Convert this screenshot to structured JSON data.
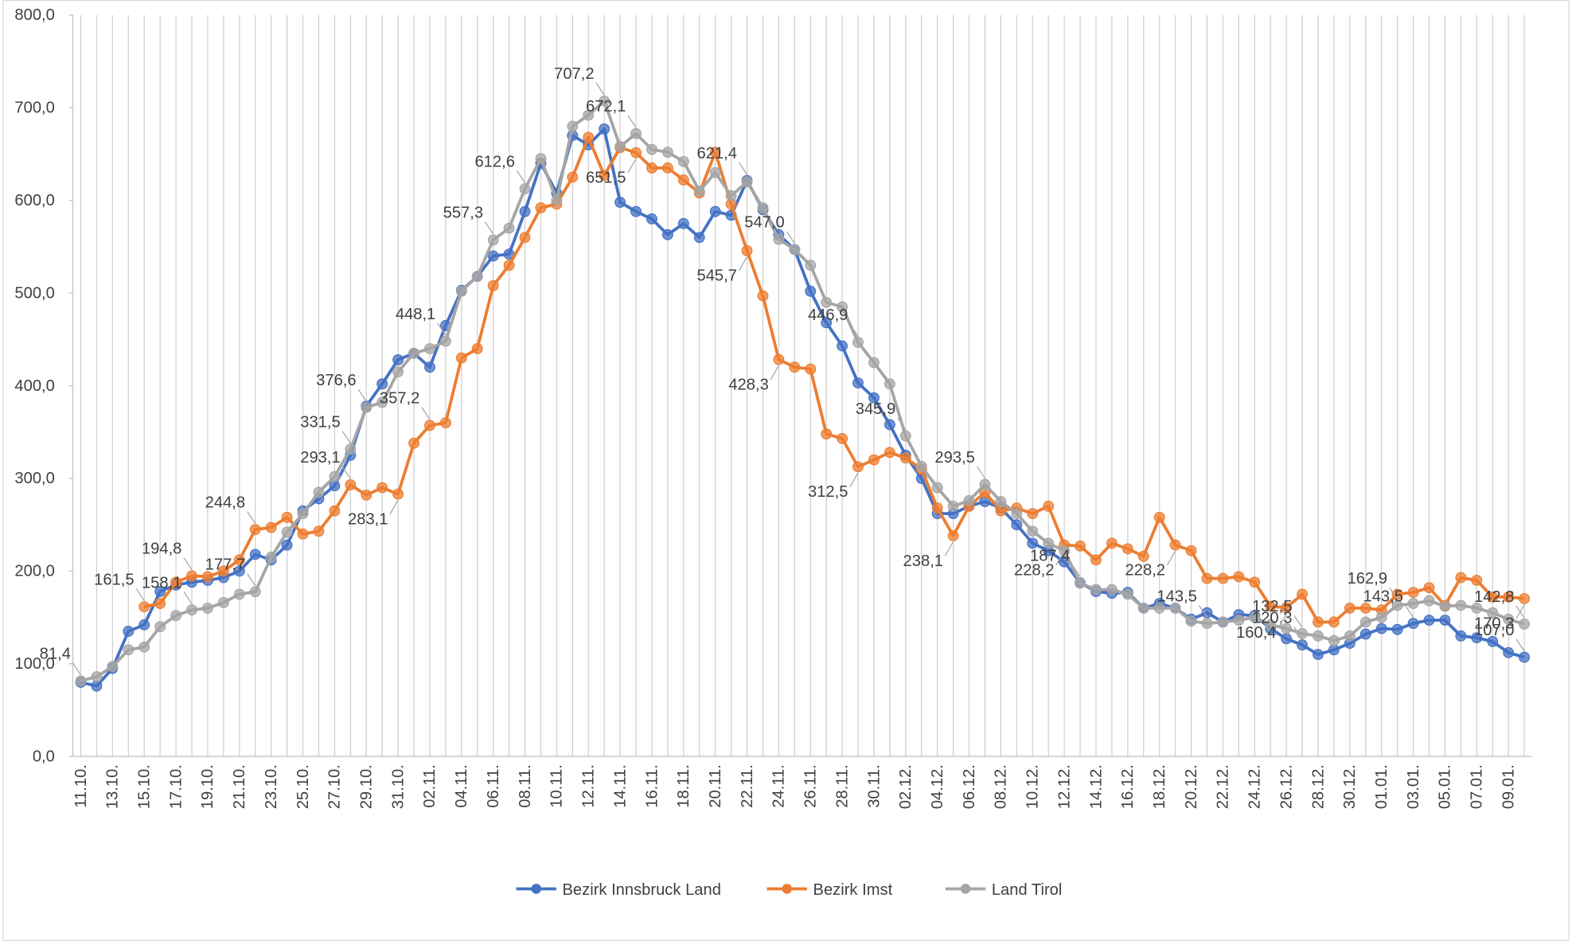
{
  "chart_data": {
    "type": "line",
    "categories": [
      "11.10.",
      null,
      "13.10.",
      null,
      "15.10.",
      null,
      "17.10.",
      null,
      "19.10.",
      null,
      "21.10.",
      null,
      "23.10.",
      null,
      "25.10.",
      null,
      "27.10.",
      null,
      "29.10.",
      null,
      "31.10.",
      null,
      "02.11.",
      null,
      "04.11.",
      null,
      "06.11.",
      null,
      "08.11.",
      null,
      "10.11.",
      null,
      "12.11.",
      null,
      "14.11.",
      null,
      "16.11.",
      null,
      "18.11.",
      null,
      "20.11.",
      null,
      "22.11.",
      null,
      "24.11.",
      null,
      "26.11.",
      null,
      "28.11.",
      null,
      "30.11.",
      null,
      "02.12.",
      null,
      "04.12.",
      null,
      "06.12.",
      null,
      "08.12.",
      null,
      "10.12.",
      null,
      "12.12.",
      null,
      "14.12.",
      null,
      "16.12.",
      null,
      "18.12.",
      null,
      "20.12.",
      null,
      "22.12.",
      null,
      "24.12.",
      null,
      "26.12.",
      null,
      "28.12.",
      null,
      "30.12.",
      null,
      "01.01.",
      null,
      "03.01.",
      null,
      "05.01.",
      null,
      "07.01.",
      null,
      "09.01.",
      null
    ],
    "series": [
      {
        "name": "Bezirk Innsbruck Land",
        "color": "#4472c4",
        "values": [
          80,
          76,
          95,
          135,
          142,
          178,
          185,
          188,
          190,
          193,
          200,
          218,
          212,
          228,
          265,
          278,
          292,
          325,
          378,
          402,
          428,
          435,
          420,
          465,
          503,
          518,
          540,
          542,
          588,
          640,
          608,
          670,
          660,
          677,
          598,
          588,
          580,
          563,
          575,
          560,
          588,
          584,
          621.4,
          590,
          563,
          547,
          502,
          468,
          443,
          403,
          387,
          358,
          325,
          300,
          262,
          262,
          270,
          275,
          268,
          250,
          230,
          222,
          210,
          187.4,
          178,
          176,
          177,
          160,
          165,
          160,
          148,
          155,
          145,
          153,
          152,
          138,
          127,
          120.3,
          110,
          115,
          122,
          132,
          138,
          137,
          143.5,
          147,
          147,
          130,
          128,
          124,
          112,
          107.0
        ],
        "value_labels": [
          null,
          null,
          null,
          null,
          null,
          null,
          null,
          null,
          null,
          null,
          null,
          null,
          null,
          null,
          null,
          null,
          null,
          null,
          null,
          null,
          null,
          null,
          null,
          null,
          null,
          null,
          null,
          null,
          null,
          null,
          null,
          null,
          null,
          null,
          null,
          null,
          null,
          null,
          null,
          null,
          null,
          null,
          "621,4",
          null,
          null,
          null,
          null,
          null,
          null,
          null,
          null,
          null,
          null,
          null,
          null,
          null,
          null,
          null,
          null,
          null,
          null,
          null,
          null,
          "187,4",
          null,
          null,
          null,
          null,
          null,
          null,
          null,
          null,
          null,
          null,
          null,
          null,
          null,
          "120,3",
          null,
          null,
          null,
          null,
          null,
          null,
          "143,5",
          null,
          null,
          null,
          null,
          null,
          null,
          "107,0"
        ]
      },
      {
        "name": "Bezirk Imst",
        "color": "#ed7d31",
        "values": [
          null,
          null,
          null,
          null,
          161.5,
          165,
          188,
          194.8,
          194,
          200,
          212,
          244.8,
          247,
          258,
          240,
          243,
          265,
          293.1,
          282,
          290,
          283.1,
          338,
          357.2,
          360,
          430,
          440,
          508,
          530,
          560,
          592,
          596,
          625,
          668,
          627,
          657,
          651.5,
          635,
          635,
          622,
          608,
          652,
          596,
          545.7,
          497,
          428.3,
          420,
          418,
          348,
          343,
          312.5,
          320,
          328,
          322,
          310,
          268,
          238.1,
          270,
          285,
          265,
          268,
          262,
          270,
          228.2,
          227,
          212,
          230,
          224,
          216,
          258,
          228.2,
          222,
          192,
          192,
          194,
          188,
          162,
          160.4,
          175,
          145,
          145,
          160,
          160,
          158,
          175,
          177,
          182,
          163,
          193,
          190,
          172,
          172,
          170.3
        ],
        "value_labels": [
          null,
          null,
          null,
          null,
          "161,5",
          null,
          null,
          "194,8",
          null,
          null,
          null,
          "244,8",
          null,
          null,
          null,
          null,
          null,
          "293,1",
          null,
          null,
          "283,1",
          null,
          "357,2",
          null,
          null,
          null,
          null,
          null,
          null,
          null,
          null,
          null,
          null,
          null,
          null,
          "651,5",
          null,
          null,
          null,
          null,
          null,
          null,
          "545,7",
          null,
          "428,3",
          null,
          null,
          null,
          null,
          "312,5",
          null,
          null,
          null,
          null,
          null,
          "238,1",
          null,
          null,
          null,
          null,
          null,
          null,
          "228,2",
          null,
          null,
          null,
          null,
          null,
          null,
          "228,2",
          null,
          null,
          null,
          null,
          null,
          null,
          "160,4",
          null,
          null,
          null,
          null,
          null,
          null,
          null,
          null,
          null,
          null,
          null,
          null,
          null,
          null,
          "170,3"
        ]
      },
      {
        "name": "Land Tirol",
        "color": "#a5a5a5",
        "values": [
          81.4,
          86,
          97,
          115,
          118,
          140,
          152,
          158.1,
          160,
          166,
          175,
          177.7,
          215,
          242,
          262,
          285,
          302,
          331.5,
          376.6,
          382,
          415,
          435,
          440,
          448.1,
          502,
          518,
          557.3,
          570,
          612.6,
          645,
          600,
          680,
          692,
          707.2,
          658,
          672.1,
          655,
          652,
          642,
          610,
          630,
          605,
          620,
          592,
          558,
          547.0,
          530,
          490,
          485,
          446.9,
          425,
          402,
          345.9,
          313,
          290,
          270,
          276,
          293.5,
          275,
          262,
          243,
          230,
          222,
          187,
          180,
          180,
          175,
          160,
          160,
          160,
          146,
          143.5,
          145,
          147,
          150,
          142,
          138,
          132.5,
          130,
          125,
          130,
          145,
          150,
          162.9,
          165,
          168,
          162,
          163,
          160,
          155,
          148,
          142.8
        ],
        "value_labels": [
          "81,4",
          null,
          null,
          null,
          null,
          null,
          null,
          "158,1",
          null,
          null,
          null,
          "177,7",
          null,
          null,
          null,
          null,
          null,
          "331,5",
          "376,6",
          null,
          null,
          null,
          null,
          "448,1",
          null,
          null,
          "557,3",
          null,
          "612,6",
          null,
          null,
          null,
          null,
          "707,2",
          null,
          "672,1",
          null,
          null,
          null,
          null,
          null,
          null,
          null,
          null,
          null,
          "547,0",
          null,
          null,
          null,
          "446,9",
          null,
          null,
          "345,9",
          null,
          null,
          null,
          null,
          "293,5",
          null,
          null,
          null,
          null,
          null,
          null,
          null,
          null,
          null,
          null,
          null,
          null,
          null,
          "143,5",
          null,
          null,
          null,
          null,
          null,
          "132,5",
          null,
          null,
          null,
          null,
          null,
          "162,9",
          null,
          null,
          null,
          null,
          null,
          null,
          null,
          "142,8"
        ]
      }
    ],
    "ylim": [
      0,
      800
    ],
    "yticks": [
      {
        "value": 0,
        "label": "0,0"
      },
      {
        "value": 100,
        "label": "100,0"
      },
      {
        "value": 200,
        "label": "200,0"
      },
      {
        "value": 300,
        "label": "300,0"
      },
      {
        "value": 400,
        "label": "400,0"
      },
      {
        "value": 500,
        "label": "500,0"
      },
      {
        "value": 600,
        "label": "600,0"
      },
      {
        "value": 700,
        "label": "700,0"
      },
      {
        "value": 800,
        "label": "800,0"
      }
    ],
    "grid": true,
    "legend": "bottom"
  }
}
